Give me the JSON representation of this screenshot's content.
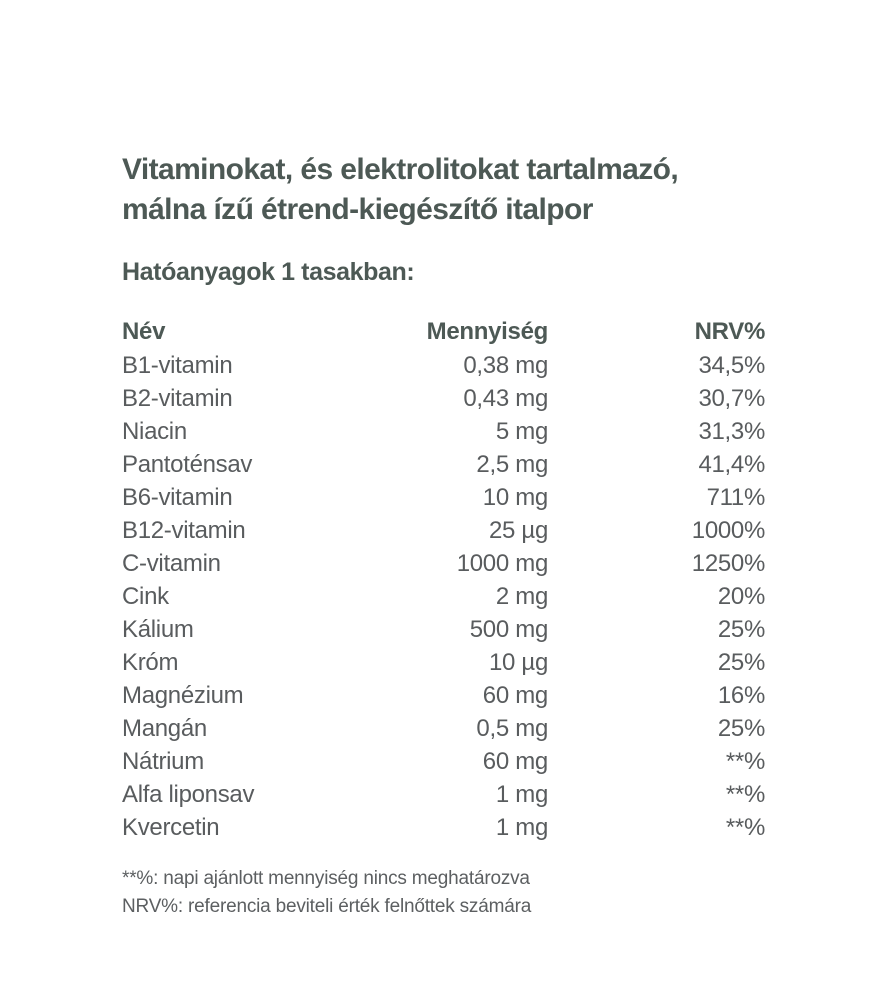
{
  "page": {
    "background_color": "#ffffff",
    "title_color": "#4d5955",
    "body_text_color": "#595c5e"
  },
  "title": {
    "lines": [
      "Vitaminokat, és elektrolitokat tartalmazó,",
      "málna ízű étrend-kiegészítő italpor"
    ]
  },
  "section_heading": "Hatóanyagok 1 tasakban:",
  "table": {
    "headers": {
      "name": "Név",
      "amount": "Mennyiség",
      "nrv": "NRV%"
    },
    "rows": [
      {
        "name": "B1-vitamin",
        "amount": "0,38 mg",
        "nrv": "34,5%"
      },
      {
        "name": "B2-vitamin",
        "amount": "0,43 mg",
        "nrv": "30,7%"
      },
      {
        "name": "Niacin",
        "amount": "5 mg",
        "nrv": "31,3%"
      },
      {
        "name": "Pantoténsav",
        "amount": "2,5 mg",
        "nrv": "41,4%"
      },
      {
        "name": "B6-vitamin",
        "amount": "10 mg",
        "nrv": "711%"
      },
      {
        "name": "B12-vitamin",
        "amount": "25 µg",
        "nrv": "1000%"
      },
      {
        "name": "C-vitamin",
        "amount": "1000 mg",
        "nrv": "1250%"
      },
      {
        "name": "Cink",
        "amount": "2 mg",
        "nrv": "20%"
      },
      {
        "name": "Kálium",
        "amount": "500 mg",
        "nrv": "25%"
      },
      {
        "name": "Króm",
        "amount": "10 µg",
        "nrv": "25%"
      },
      {
        "name": "Magnézium",
        "amount": "60 mg",
        "nrv": "16%"
      },
      {
        "name": "Mangán",
        "amount": "0,5 mg",
        "nrv": "25%"
      },
      {
        "name": "Nátrium",
        "amount": "60 mg",
        "nrv": "**%"
      },
      {
        "name": "Alfa liponsav",
        "amount": "1 mg",
        "nrv": "**%"
      },
      {
        "name": "Kvercetin",
        "amount": "1 mg",
        "nrv": "**%"
      }
    ]
  },
  "footnotes": [
    "**%: napi ajánlott mennyiség nincs meghatározva",
    "NRV%: referencia beviteli érték felnőttek számára"
  ]
}
